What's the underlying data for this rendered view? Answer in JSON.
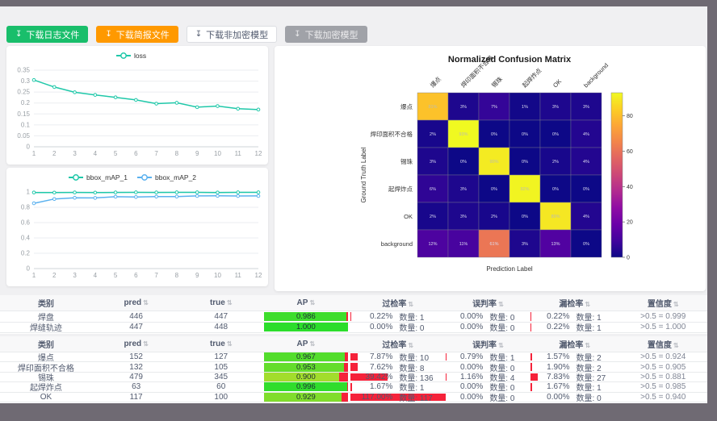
{
  "page": {
    "frame_color": "#6f6a73",
    "bg": "#f0f0f2"
  },
  "toolbar": {
    "download_glyph": "↧",
    "buttons": [
      {
        "label": "下载日志文件",
        "style": "success"
      },
      {
        "label": "下载简报文件",
        "style": "warning"
      },
      {
        "label": "下载非加密模型",
        "style": "default"
      },
      {
        "label": "下载加密模型",
        "style": "disabled"
      }
    ]
  },
  "chart_data": [
    {
      "type": "line",
      "id": "loss-chart",
      "legend_entries": [
        "loss"
      ],
      "x": [
        1,
        2,
        3,
        4,
        5,
        6,
        7,
        8,
        9,
        10,
        11,
        12
      ],
      "series": [
        {
          "name": "loss",
          "color": "#1fc8a9",
          "values": [
            0.305,
            0.273,
            0.249,
            0.237,
            0.226,
            0.214,
            0.197,
            0.201,
            0.181,
            0.186,
            0.174,
            0.17
          ]
        }
      ],
      "ylim": [
        0,
        0.35
      ],
      "yticks": [
        0,
        0.05,
        0.1,
        0.15,
        0.2,
        0.25,
        0.3,
        0.35
      ],
      "grid": true,
      "legend_position": "top-center"
    },
    {
      "type": "line",
      "id": "map-chart",
      "legend_entries": [
        "bbox_mAP_1",
        "bbox_mAP_2"
      ],
      "x": [
        1,
        2,
        3,
        4,
        5,
        6,
        7,
        8,
        9,
        10,
        11,
        12
      ],
      "series": [
        {
          "name": "bbox_mAP_1",
          "color": "#1fc8a9",
          "values": [
            0.993,
            0.992,
            0.994,
            0.992,
            0.994,
            0.995,
            0.994,
            0.995,
            0.995,
            0.993,
            0.995,
            0.995
          ]
        },
        {
          "name": "bbox_mAP_2",
          "color": "#5ab1ef",
          "values": [
            0.852,
            0.908,
            0.924,
            0.922,
            0.938,
            0.934,
            0.939,
            0.94,
            0.948,
            0.949,
            0.947,
            0.948
          ]
        }
      ],
      "ylim": [
        0,
        1
      ],
      "yticks": [
        0,
        0.2,
        0.4,
        0.6,
        0.8,
        1
      ],
      "grid": true,
      "legend_position": "top-center"
    },
    {
      "type": "heatmap",
      "id": "cm-chart",
      "title": "Normalized Confusion Matrix",
      "xlabel": "Prediction Label",
      "ylabel": "Ground Truth Label",
      "labels": [
        "爆点",
        "焊印面积不合格",
        "锡珠",
        "起焊炸点",
        "OK",
        "background"
      ],
      "matrix": [
        [
          81,
          3,
          7,
          1,
          3,
          3
        ],
        [
          2,
          93,
          0,
          0,
          0,
          4
        ],
        [
          3,
          0,
          90,
          0,
          2,
          4
        ],
        [
          6,
          3,
          0,
          92,
          0,
          0
        ],
        [
          2,
          3,
          2,
          0,
          89,
          4
        ],
        [
          12,
          11,
          61,
          3,
          13,
          0
        ]
      ],
      "vmax": 93,
      "colormap": "plasma",
      "colorbar_ticks": [
        0,
        20,
        40,
        60,
        80
      ],
      "legend_position": "colorbar-right"
    }
  ],
  "tables": [
    {
      "headers": [
        "类别",
        "pred",
        "true",
        "AP",
        "过检率",
        "误判率",
        "漏检率",
        "置信度"
      ],
      "count_label": "数量:",
      "rows": [
        {
          "label": "焊盘",
          "pred": "446",
          "true": "447",
          "ap": 0.986,
          "over": {
            "pct": "0.22%",
            "count": "数量: 1",
            "bar": 0.22
          },
          "err": {
            "pct": "0.00%",
            "count": "数量: 0",
            "bar": 0
          },
          "miss": {
            "pct": "0.22%",
            "count": "数量: 1",
            "bar": 0.22
          },
          "conf": ">0.5 = 0.999"
        },
        {
          "label": "焊缝轨迹",
          "pred": "447",
          "true": "448",
          "ap": 1.0,
          "over": {
            "pct": "0.00%",
            "count": "数量: 0",
            "bar": 0
          },
          "err": {
            "pct": "0.00%",
            "count": "数量: 0",
            "bar": 0
          },
          "miss": {
            "pct": "0.22%",
            "count": "数量: 1",
            "bar": 0.22
          },
          "conf": ">0.5 = 1.000"
        }
      ]
    },
    {
      "headers": [
        "类别",
        "pred",
        "true",
        "AP",
        "过检率",
        "误判率",
        "漏检率",
        "置信度"
      ],
      "count_label": "数量:",
      "rows": [
        {
          "label": "爆点",
          "pred": "152",
          "true": "127",
          "ap": 0.967,
          "over": {
            "pct": "7.87%",
            "count": "数量: 10",
            "bar": 7.87
          },
          "err": {
            "pct": "0.79%",
            "count": "数量: 1",
            "bar": 0.79
          },
          "miss": {
            "pct": "1.57%",
            "count": "数量: 2",
            "bar": 1.57
          },
          "conf": ">0.5 = 0.924"
        },
        {
          "label": "焊印面积不合格",
          "pred": "132",
          "true": "105",
          "ap": 0.953,
          "over": {
            "pct": "7.62%",
            "count": "数量: 8",
            "bar": 7.62
          },
          "err": {
            "pct": "0.00%",
            "count": "数量: 0",
            "bar": 0
          },
          "miss": {
            "pct": "1.90%",
            "count": "数量: 2",
            "bar": 1.9
          },
          "conf": ">0.5 = 0.905"
        },
        {
          "label": "锡珠",
          "pred": "479",
          "true": "345",
          "ap": 0.9,
          "over": {
            "pct": "39.42%",
            "count": "数量: 136",
            "bar": 39.42
          },
          "err": {
            "pct": "1.16%",
            "count": "数量: 4",
            "bar": 1.16
          },
          "miss": {
            "pct": "7.83%",
            "count": "数量: 27",
            "bar": 7.83
          },
          "conf": ">0.5 = 0.881"
        },
        {
          "label": "起焊炸点",
          "pred": "63",
          "true": "60",
          "ap": 0.996,
          "over": {
            "pct": "1.67%",
            "count": "数量: 1",
            "bar": 1.67
          },
          "err": {
            "pct": "0.00%",
            "count": "数量: 0",
            "bar": 0
          },
          "miss": {
            "pct": "1.67%",
            "count": "数量: 1",
            "bar": 1.67
          },
          "conf": ">0.5 = 0.985"
        },
        {
          "label": "OK",
          "pred": "117",
          "true": "100",
          "ap": 0.929,
          "over": {
            "pct": "117.00%",
            "count": "数量: 117",
            "bar": 117
          },
          "err": {
            "pct": "0.00%",
            "count": "数量: 0",
            "bar": 0
          },
          "miss": {
            "pct": "0.00%",
            "count": "数量: 0",
            "bar": 0
          },
          "conf": ">0.5 = 0.940"
        }
      ]
    }
  ]
}
